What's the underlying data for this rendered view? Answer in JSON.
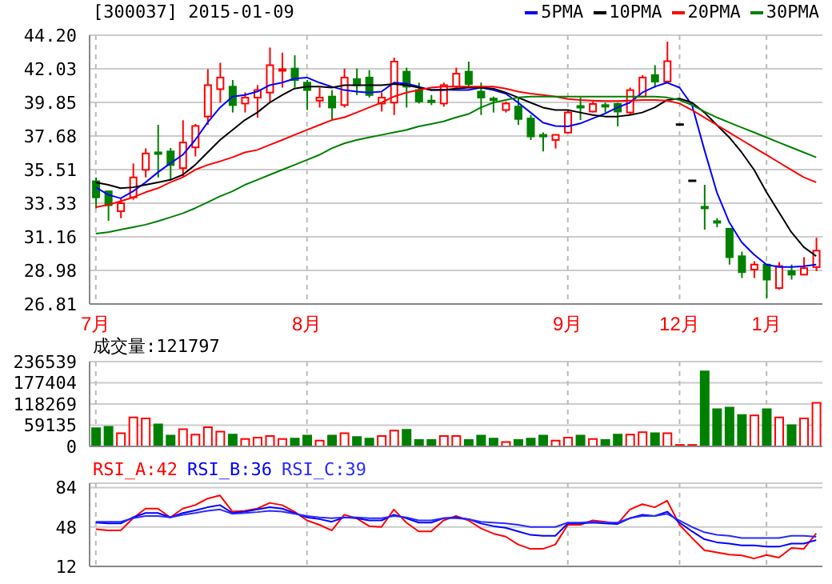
{
  "chart_data": [
    {
      "type": "candlestick",
      "title": "[300037] 2015-01-09",
      "categories": [
        "7月",
        null,
        null,
        null,
        null,
        null,
        null,
        null,
        null,
        null,
        null,
        null,
        null,
        null,
        null,
        null,
        null,
        "8月",
        null,
        null,
        null,
        null,
        null,
        null,
        null,
        null,
        null,
        null,
        null,
        null,
        null,
        null,
        null,
        null,
        null,
        null,
        null,
        null,
        "9月",
        null,
        null,
        null,
        null,
        null,
        null,
        null,
        null,
        "12月",
        null,
        null,
        null,
        null,
        null,
        null,
        "1月",
        null,
        null,
        null,
        null
      ],
      "ohlc": [
        [
          34.75,
          35.0,
          33.0,
          33.71
        ],
        [
          34.1,
          34.1,
          32.2,
          33.2
        ],
        [
          32.81,
          33.65,
          32.36,
          33.33
        ],
        [
          33.71,
          35.9,
          33.55,
          35.0
        ],
        [
          35.49,
          36.88,
          35.0,
          36.55
        ],
        [
          36.62,
          38.4,
          35.0,
          36.55
        ],
        [
          36.68,
          36.9,
          34.8,
          35.8
        ],
        [
          35.6,
          38.7,
          35.0,
          37.26
        ],
        [
          36.94,
          38.46,
          36.36,
          38.33
        ],
        [
          38.94,
          42.0,
          38.4,
          40.97
        ],
        [
          40.71,
          42.42,
          39.84,
          41.46
        ],
        [
          40.87,
          41.3,
          39.2,
          39.68
        ],
        [
          39.78,
          40.5,
          39.2,
          40.16
        ],
        [
          40.16,
          40.97,
          38.87,
          40.65
        ],
        [
          40.49,
          43.4,
          39.84,
          42.26
        ],
        [
          41.9,
          43.07,
          40.81,
          42.0
        ],
        [
          42.04,
          42.9,
          40.81,
          41.3
        ],
        [
          41.13,
          41.3,
          39.36,
          40.65
        ],
        [
          39.97,
          40.81,
          39.52,
          40.16
        ],
        [
          40.23,
          40.65,
          38.7,
          39.52
        ],
        [
          39.68,
          42.04,
          39.52,
          41.46
        ],
        [
          41.36,
          42.04,
          40.33,
          40.97
        ],
        [
          41.46,
          41.94,
          40.17,
          40.33
        ],
        [
          39.78,
          40.49,
          39.26,
          40.16
        ],
        [
          39.84,
          42.75,
          39.04,
          42.49
        ],
        [
          41.84,
          42.1,
          39.52,
          40.87
        ],
        [
          40.65,
          41.13,
          39.78,
          39.91
        ],
        [
          39.97,
          40.33,
          39.68,
          39.91
        ],
        [
          39.78,
          41.13,
          39.58,
          40.97
        ],
        [
          40.87,
          42.1,
          40.74,
          41.71
        ],
        [
          41.84,
          42.49,
          40.81,
          41.04
        ],
        [
          40.55,
          41.13,
          39.04,
          40.17
        ],
        [
          40.1,
          40.23,
          39.2,
          40.0
        ],
        [
          39.36,
          39.9,
          39.2,
          39.78
        ],
        [
          39.58,
          40.17,
          38.39,
          38.78
        ],
        [
          38.81,
          39.04,
          37.42,
          37.65
        ],
        [
          37.75,
          37.91,
          36.68,
          37.65
        ],
        [
          37.42,
          37.75,
          36.87,
          37.75
        ],
        [
          37.9,
          39.36,
          37.9,
          39.2
        ],
        [
          39.62,
          40.17,
          38.71,
          39.55
        ],
        [
          39.26,
          39.9,
          39.2,
          39.75
        ],
        [
          39.68,
          39.84,
          39.2,
          39.62
        ],
        [
          39.75,
          39.84,
          38.3,
          39.26
        ],
        [
          39.2,
          40.81,
          39.04,
          40.65
        ],
        [
          40.23,
          41.62,
          40.17,
          41.46
        ],
        [
          41.62,
          42.26,
          40.81,
          41.2
        ],
        [
          41.2,
          43.78,
          41.13,
          42.52
        ],
        [
          38.42,
          38.42,
          38.42,
          38.42
        ],
        [
          34.78,
          34.78,
          34.78,
          34.78
        ],
        [
          33.1,
          34.52,
          31.62,
          33.0
        ],
        [
          32.17,
          32.36,
          31.78,
          32.1
        ],
        [
          31.68,
          31.68,
          29.36,
          29.84
        ],
        [
          29.9,
          30.2,
          28.49,
          28.87
        ],
        [
          29.04,
          29.58,
          28.49,
          29.36
        ],
        [
          29.36,
          29.36,
          27.2,
          28.39
        ],
        [
          27.84,
          29.52,
          27.74,
          29.26
        ],
        [
          28.94,
          29.36,
          28.39,
          28.71
        ],
        [
          28.71,
          29.84,
          28.71,
          29.13
        ],
        [
          29.2,
          31.1,
          28.94,
          30.26
        ]
      ],
      "colors": [
        "#008000",
        "#008000",
        "#ff0000",
        "#ff0000",
        "#ff0000",
        "#008000",
        "#008000",
        "#ff0000",
        "#ff0000",
        "#ff0000",
        "#ff0000",
        "#008000",
        "#ff0000",
        "#ff0000",
        "#ff0000",
        "#ff0000",
        "#008000",
        "#008000",
        "#ff0000",
        "#008000",
        "#ff0000",
        "#008000",
        "#008000",
        "#ff0000",
        "#ff0000",
        "#008000",
        "#008000",
        "#008000",
        "#ff0000",
        "#ff0000",
        "#008000",
        "#008000",
        "#008000",
        "#ff0000",
        "#008000",
        "#008000",
        "#008000",
        "#ff0000",
        "#ff0000",
        "#008000",
        "#ff0000",
        "#008000",
        "#008000",
        "#ff0000",
        "#ff0000",
        "#008000",
        "#ff0000",
        "#000000",
        "#000000",
        "#008000",
        "#008000",
        "#008000",
        "#008000",
        "#ff0000",
        "#008000",
        "#ff0000",
        "#008000",
        "#ff0000",
        "#ff0000"
      ],
      "series": [
        {
          "name": "5PMA",
          "type": "line",
          "color": "#0000ff",
          "values": [
            34.36,
            33.88,
            33.65,
            34.1,
            34.68,
            35.33,
            35.91,
            36.46,
            37.42,
            38.55,
            39.52,
            40.23,
            40.33,
            40.55,
            40.97,
            41.13,
            41.39,
            41.46,
            41.13,
            40.87,
            40.65,
            40.55,
            40.49,
            40.55,
            41.13,
            41.07,
            40.87,
            40.65,
            40.68,
            40.65,
            40.65,
            40.81,
            40.65,
            40.42,
            39.84,
            39.2,
            38.55,
            38.33,
            38.3,
            38.49,
            38.81,
            39.13,
            39.52,
            39.84,
            40.49,
            40.87,
            41.13,
            40.81,
            39.68,
            36.78,
            34.04,
            32.1,
            30.81,
            30.01,
            29.36,
            29.2,
            29.2,
            29.26,
            29.36
          ]
        },
        {
          "name": "10PMA",
          "type": "line",
          "color": "#000000",
          "values": [
            34.68,
            34.52,
            34.3,
            34.36,
            34.52,
            34.68,
            34.84,
            35.17,
            35.81,
            36.62,
            37.42,
            38.07,
            38.71,
            39.2,
            39.84,
            40.33,
            40.75,
            40.87,
            40.87,
            40.81,
            40.97,
            40.97,
            40.97,
            40.97,
            41.04,
            40.97,
            40.81,
            40.65,
            40.65,
            40.75,
            40.81,
            40.81,
            40.75,
            40.49,
            40.17,
            39.84,
            39.52,
            39.36,
            39.36,
            39.2,
            39.04,
            38.94,
            38.94,
            39.04,
            39.2,
            39.52,
            40.01,
            40.1,
            39.84,
            39.2,
            38.39,
            37.59,
            36.62,
            35.49,
            34.04,
            32.75,
            31.46,
            30.49,
            29.91
          ]
        },
        {
          "name": "20PMA",
          "type": "line",
          "color": "#ff0000",
          "values": [
            33.07,
            33.23,
            33.46,
            33.71,
            34.04,
            34.3,
            34.68,
            35.01,
            35.49,
            35.81,
            36.04,
            36.3,
            36.62,
            36.78,
            37.1,
            37.42,
            37.75,
            38.07,
            38.39,
            38.71,
            38.88,
            39.2,
            39.52,
            39.84,
            40.23,
            40.49,
            40.65,
            40.81,
            40.87,
            40.87,
            40.87,
            40.87,
            40.87,
            40.75,
            40.55,
            40.42,
            40.33,
            40.23,
            40.07,
            40.01,
            39.97,
            39.94,
            39.94,
            39.97,
            40.01,
            40.01,
            39.97,
            39.78,
            39.36,
            38.88,
            38.39,
            37.91,
            37.42,
            36.94,
            36.46,
            35.97,
            35.49,
            35.01,
            34.68
          ]
        },
        {
          "name": "30PMA",
          "type": "line",
          "color": "#008000",
          "values": [
            31.36,
            31.46,
            31.62,
            31.78,
            31.94,
            32.17,
            32.42,
            32.68,
            33.01,
            33.39,
            33.78,
            34.1,
            34.52,
            34.84,
            35.17,
            35.49,
            35.81,
            36.13,
            36.46,
            36.88,
            37.2,
            37.42,
            37.59,
            37.75,
            37.91,
            38.07,
            38.3,
            38.46,
            38.62,
            38.88,
            39.1,
            39.52,
            39.84,
            40.01,
            40.17,
            40.23,
            40.23,
            40.23,
            40.23,
            40.23,
            40.23,
            40.23,
            40.23,
            40.23,
            40.23,
            40.23,
            40.17,
            40.01,
            39.68,
            39.26,
            38.88,
            38.55,
            38.23,
            37.91,
            37.59,
            37.26,
            36.94,
            36.62,
            36.3
          ]
        }
      ],
      "ylim": [
        26.81,
        44.2
      ],
      "yticks": [
        {
          "value": 44.2,
          "label": "44.20"
        },
        42.03,
        39.85,
        37.68,
        35.51,
        33.33,
        31.16,
        28.98,
        26.81
      ],
      "grid": true,
      "legend": "top right",
      "marker": "none"
    },
    {
      "type": "bar",
      "title": "成交量:121797",
      "categories": [
        null,
        null,
        null,
        null,
        null,
        null,
        null,
        null,
        null,
        null,
        null,
        null,
        null,
        null,
        null,
        null,
        null,
        null,
        null,
        null,
        null,
        null,
        null,
        null,
        null,
        null,
        null,
        null,
        null,
        null,
        null,
        null,
        null,
        null,
        null,
        null,
        null,
        null,
        null,
        null,
        null,
        null,
        null,
        null,
        null,
        null,
        null,
        null,
        null,
        null,
        null,
        null,
        null,
        null,
        null,
        null,
        null,
        null,
        null
      ],
      "values": [
        50650,
        54760,
        36960,
        80770,
        78030,
        61600,
        30120,
        47910,
        32860,
        53390,
        41070,
        32860,
        20530,
        24640,
        28750,
        20530,
        21900,
        30120,
        16430,
        30120,
        36960,
        26010,
        21900,
        28750,
        43810,
        46550,
        17800,
        17800,
        28750,
        28750,
        17800,
        30120,
        21900,
        12320,
        17800,
        21900,
        30120,
        16430,
        24640,
        30120,
        20530,
        17800,
        32860,
        32860,
        39700,
        36960,
        36960,
        4110,
        4110,
        209460,
        104040,
        108150,
        87620,
        86250,
        104040,
        80770,
        58870,
        78030,
        121797
      ],
      "colors": [
        "#008000",
        "#008000",
        "#ff0000",
        "#ff0000",
        "#ff0000",
        "#008000",
        "#008000",
        "#ff0000",
        "#ff0000",
        "#ff0000",
        "#ff0000",
        "#008000",
        "#ff0000",
        "#ff0000",
        "#ff0000",
        "#ff0000",
        "#008000",
        "#008000",
        "#ff0000",
        "#008000",
        "#ff0000",
        "#008000",
        "#008000",
        "#ff0000",
        "#ff0000",
        "#008000",
        "#008000",
        "#008000",
        "#ff0000",
        "#ff0000",
        "#008000",
        "#008000",
        "#008000",
        "#ff0000",
        "#008000",
        "#008000",
        "#008000",
        "#ff0000",
        "#ff0000",
        "#008000",
        "#ff0000",
        "#008000",
        "#008000",
        "#ff0000",
        "#ff0000",
        "#008000",
        "#ff0000",
        "#ff0000",
        "#ff0000",
        "#008000",
        "#008000",
        "#008000",
        "#008000",
        "#ff0000",
        "#008000",
        "#ff0000",
        "#008000",
        "#ff0000",
        "#ff0000"
      ],
      "ylim": [
        0,
        236539
      ],
      "yticks": [
        0,
        59135,
        118269,
        177404,
        236539
      ],
      "grid": true,
      "tick_labels": "y"
    },
    {
      "type": "line",
      "categories": [
        null,
        null,
        null,
        null,
        null,
        null,
        null,
        null,
        null,
        null,
        null,
        null,
        null,
        null,
        null,
        null,
        null,
        null,
        null,
        null,
        null,
        null,
        null,
        null,
        null,
        null,
        null,
        null,
        null,
        null,
        null,
        null,
        null,
        null,
        null,
        null,
        null,
        null,
        null,
        null,
        null,
        null,
        null,
        null,
        null,
        null,
        null,
        null,
        null,
        null,
        null,
        null,
        null,
        null,
        null,
        null,
        null,
        null,
        null
      ],
      "series": [
        {
          "name": "RSI_A:42",
          "color": "#ff0000",
          "values": [
            46,
            44.8,
            44.8,
            56,
            64.8,
            64.8,
            56.8,
            64.8,
            68,
            74,
            76.8,
            62,
            62.8,
            64.8,
            70,
            68,
            62,
            54,
            50,
            44.8,
            59.2,
            56,
            48.8,
            48,
            64,
            52,
            44,
            44,
            54,
            58,
            54,
            46.8,
            42,
            39.2,
            32,
            28,
            28,
            32,
            50,
            50,
            54,
            52.8,
            50.8,
            64,
            68.8,
            66,
            72,
            50,
            38,
            26.8,
            24.8,
            22.8,
            22,
            19.2,
            22.4,
            20,
            28.8,
            28,
            42
          ]
        },
        {
          "name": "RSI_B:36",
          "color": "#0000ff",
          "values": [
            52,
            51.2,
            51.2,
            56.8,
            60.8,
            60.8,
            56.8,
            60.8,
            63.2,
            66,
            68,
            60.8,
            62,
            64,
            66,
            64.8,
            60.8,
            56.8,
            55.2,
            52.8,
            56.8,
            56,
            54,
            54,
            59.2,
            56,
            52,
            52,
            56,
            56.8,
            55.2,
            51.2,
            48.8,
            47.2,
            44,
            40.8,
            40,
            40,
            51.2,
            51.2,
            52,
            51.2,
            50.8,
            56,
            59.2,
            58,
            62,
            52,
            44,
            36.8,
            34,
            32.8,
            31.2,
            31.2,
            30,
            30,
            32.8,
            32.8,
            36
          ]
        },
        {
          "name": "RSI_C:39",
          "color": "#2a2aff",
          "values": [
            52.8,
            52.8,
            52.8,
            56,
            58,
            58,
            56.8,
            59.2,
            60.8,
            62.8,
            64,
            60,
            60.8,
            61.6,
            62.8,
            62,
            60,
            58,
            56.8,
            56,
            56.8,
            56.8,
            56,
            56,
            58,
            56.8,
            54,
            54,
            56,
            56,
            55.2,
            52.8,
            52,
            51.2,
            50,
            48,
            48,
            48,
            52,
            52,
            52.8,
            52,
            52,
            56,
            58,
            58,
            60,
            54,
            48,
            43.2,
            40.8,
            40,
            38,
            38,
            38,
            38,
            40,
            40,
            39
          ]
        }
      ],
      "ylim": [
        12,
        88
      ],
      "yticks": [
        12,
        48,
        84
      ],
      "grid": true,
      "legend": "top left",
      "tick_labels": "y",
      "marker": "none"
    }
  ]
}
